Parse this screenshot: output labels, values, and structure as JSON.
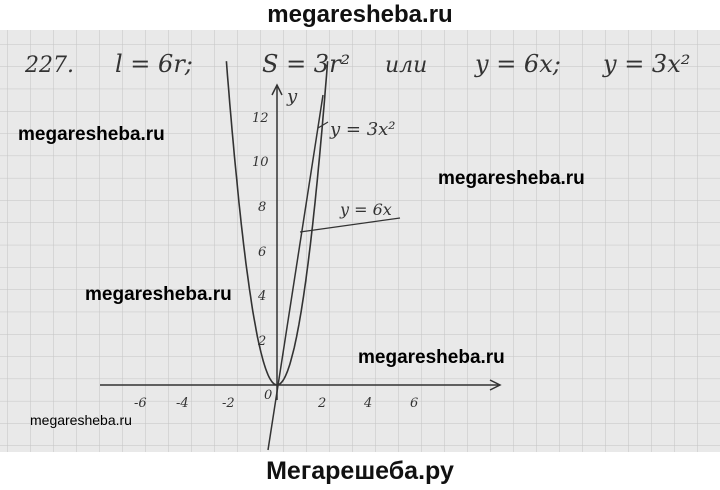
{
  "header": {
    "site": "megaresheba.ru"
  },
  "footer": {
    "site": "Мегарешеба.ру"
  },
  "watermarks": [
    "megaresheba.ru",
    "megaresheba.ru",
    "megaresheba.ru",
    "megaresheba.ru",
    "megaresheba.ru"
  ],
  "problem": {
    "number": "227.",
    "eq1": "l = 6r;",
    "eq2": "S = 3r²",
    "conj": "или",
    "eq3": "y = 6x;",
    "eq4": "y = 3x²"
  },
  "graph": {
    "y_axis_label": "y",
    "y_ticks": [
      "12",
      "10",
      "8",
      "6",
      "4",
      "2"
    ],
    "x_ticks": [
      "-6",
      "-4",
      "-2",
      "0",
      "2",
      "4",
      "6"
    ],
    "label_parabola": "y = 3x²",
    "label_line": "y = 6x"
  }
}
